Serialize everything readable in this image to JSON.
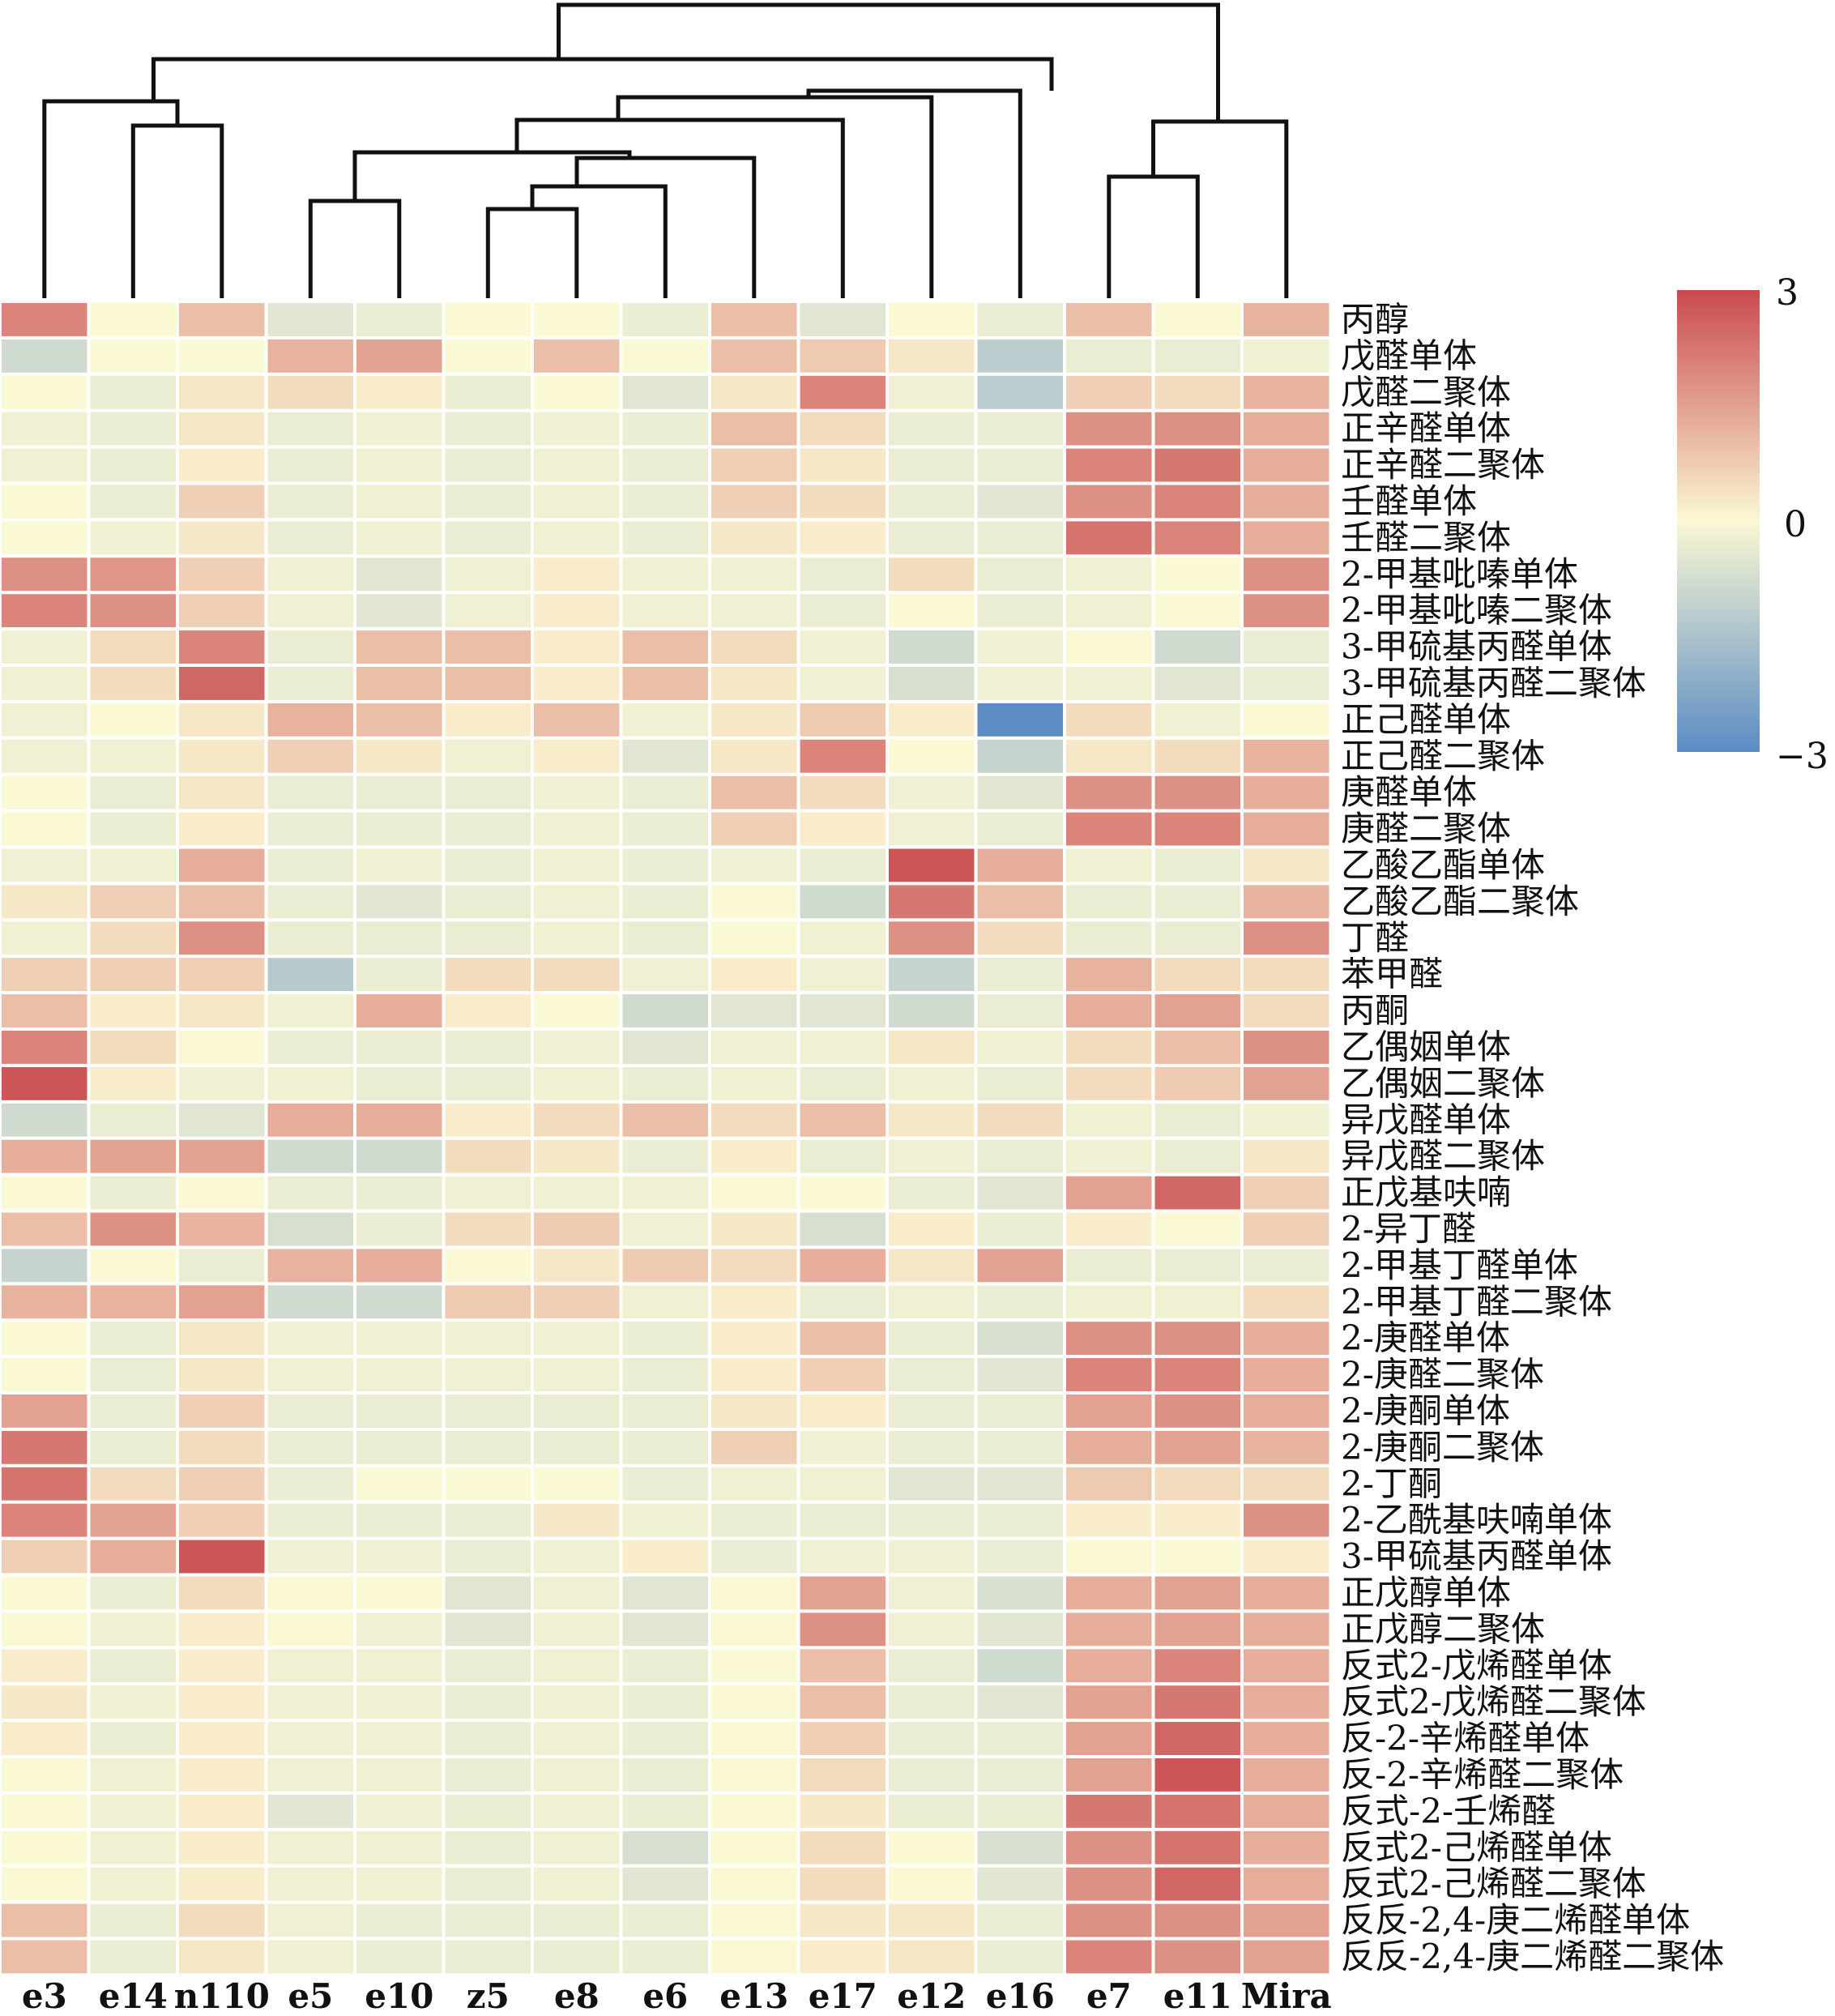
{
  "chart_data": {
    "type": "heatmap",
    "title": "",
    "columns": [
      "e3",
      "e14",
      "n110",
      "e5",
      "e10",
      "z5",
      "e8",
      "e6",
      "e13",
      "e17",
      "e12",
      "e16",
      "e7",
      "e11",
      "Mira"
    ],
    "rows": [
      "丙醇",
      "戊醛单体",
      "戊醛二聚体",
      "正辛醛单体",
      "正辛醛二聚体",
      "壬醛单体",
      "壬醛二聚体",
      "2-甲基吡嗪单体",
      "2-甲基吡嗪二聚体",
      "3-甲硫基丙醛单体",
      "3-甲硫基丙醛二聚体",
      "正己醛单体",
      "正己醛二聚体",
      "庚醛单体",
      "庚醛二聚体",
      "乙酸乙酯单体",
      "乙酸乙酯二聚体",
      "丁醛",
      "苯甲醛",
      "丙酮",
      "乙偶姻单体",
      "乙偶姻二聚体",
      "异戊醛单体",
      "异戊醛二聚体",
      "正戊基呋喃",
      "2-异丁醛",
      "2-甲基丁醛单体",
      "2-甲基丁醛二聚体",
      "2-庚醛单体",
      "2-庚醛二聚体",
      "2-庚酮单体",
      "2-庚酮二聚体",
      "2-丁酮",
      "2-乙酰基呋喃单体",
      "3-甲硫基丙醛单体",
      "正戊醇单体",
      "正戊醇二聚体",
      "反式2-戊烯醛单体",
      "反式2-戊烯醛二聚体",
      "反-2-辛烯醛单体",
      "反-2-辛烯醛二聚体",
      "反式-2-壬烯醛",
      "反式2-己烯醛单体",
      "反式2-己烯醛二聚体",
      "反反-2,4-庚二烯醛单体",
      "反反-2,4-庚二烯醛二聚体"
    ],
    "values": [
      [
        2,
        0,
        1,
        -0.5,
        -0.3,
        0,
        0,
        -0.3,
        1,
        -0.5,
        0,
        -0.3,
        1,
        0,
        1.2
      ],
      [
        -0.8,
        0,
        0,
        1.2,
        1.5,
        0,
        1,
        0,
        1,
        0.8,
        0.3,
        -1.2,
        -0.3,
        -0.3,
        -0.2
      ],
      [
        0,
        -0.3,
        0.3,
        0.5,
        0.2,
        -0.3,
        0,
        -0.5,
        0.3,
        2,
        -0.2,
        -1.2,
        0.7,
        0.5,
        1.2
      ],
      [
        -0.2,
        -0.3,
        0.3,
        -0.3,
        -0.2,
        -0.3,
        -0.2,
        -0.3,
        1,
        0.5,
        -0.3,
        -0.3,
        1.8,
        1.8,
        1.3
      ],
      [
        -0.2,
        -0.3,
        0.2,
        -0.3,
        -0.2,
        -0.3,
        -0.2,
        -0.3,
        0.7,
        0.3,
        -0.3,
        -0.3,
        2,
        2.2,
        1.3
      ],
      [
        0,
        -0.3,
        0.7,
        -0.3,
        -0.2,
        -0.3,
        -0.2,
        -0.3,
        0.7,
        0.5,
        -0.3,
        -0.5,
        1.8,
        2,
        1.3
      ],
      [
        0,
        -0.2,
        0.3,
        -0.3,
        -0.2,
        -0.3,
        -0.2,
        -0.3,
        0.3,
        0.2,
        -0.3,
        -0.3,
        2.3,
        2,
        1.3
      ],
      [
        1.8,
        1.7,
        0.7,
        -0.2,
        -0.5,
        -0.2,
        0.2,
        -0.2,
        -0.2,
        -0.3,
        0.5,
        -0.3,
        -0.2,
        0,
        1.8
      ],
      [
        2,
        1.8,
        0.7,
        -0.2,
        -0.5,
        -0.2,
        0.2,
        -0.2,
        -0.2,
        -0.3,
        0,
        -0.3,
        -0.2,
        0,
        1.8
      ],
      [
        -0.2,
        0.5,
        2,
        -0.3,
        1,
        1,
        0.2,
        1,
        0.5,
        -0.2,
        -0.8,
        -0.2,
        0,
        -0.8,
        -0.3
      ],
      [
        -0.2,
        0.5,
        2.5,
        -0.3,
        1,
        1,
        0.2,
        1,
        0.3,
        -0.2,
        -0.7,
        -0.2,
        -0.2,
        -0.5,
        -0.3
      ],
      [
        -0.2,
        0,
        0.3,
        1.2,
        1,
        0.2,
        1,
        -0.2,
        0.3,
        0.8,
        0.2,
        -3,
        0.5,
        -0.2,
        0
      ],
      [
        -0.2,
        -0.2,
        0.3,
        0.7,
        0.3,
        -0.2,
        0.2,
        -0.5,
        0.3,
        2,
        0,
        -1,
        0.3,
        0.5,
        1.2
      ],
      [
        0,
        -0.3,
        0.3,
        -0.3,
        -0.3,
        -0.3,
        -0.2,
        -0.3,
        1,
        0.5,
        -0.2,
        -0.5,
        1.8,
        1.8,
        1.3
      ],
      [
        0,
        -0.3,
        0.2,
        -0.3,
        -0.3,
        -0.3,
        -0.2,
        -0.3,
        0.7,
        0.2,
        -0.2,
        -0.3,
        2,
        2,
        1.3
      ],
      [
        -0.2,
        -0.2,
        1.3,
        -0.3,
        -0.2,
        -0.3,
        -0.2,
        -0.3,
        -0.2,
        -0.3,
        2.8,
        1.3,
        -0.2,
        -0.3,
        0.3
      ],
      [
        0.3,
        0.7,
        1,
        -0.3,
        -0.5,
        -0.3,
        -0.2,
        -0.3,
        0,
        -0.8,
        2.2,
        1,
        -0.3,
        -0.3,
        1.2
      ],
      [
        -0.2,
        0.5,
        1.8,
        -0.3,
        -0.3,
        -0.3,
        -0.2,
        -0.3,
        0,
        -0.2,
        1.8,
        0.5,
        -0.3,
        -0.3,
        1.8
      ],
      [
        0.7,
        0.7,
        0.7,
        -1.3,
        -0.3,
        0.5,
        0.5,
        -0.2,
        0.2,
        -0.2,
        -1,
        -0.3,
        1.2,
        0.5,
        0.5
      ],
      [
        1,
        0.2,
        0.3,
        -0.2,
        1.3,
        0.2,
        0,
        -0.8,
        -0.5,
        -0.5,
        -0.8,
        -0.3,
        1.3,
        1.5,
        0.5
      ],
      [
        2,
        0.5,
        0,
        -0.3,
        -0.3,
        -0.3,
        -0.2,
        -0.5,
        -0.2,
        -0.2,
        0.3,
        -0.2,
        0.5,
        1,
        1.8
      ],
      [
        2.8,
        0.2,
        -0.2,
        -0.2,
        -0.3,
        -0.3,
        -0.2,
        -0.3,
        -0.2,
        -0.3,
        -0.2,
        -0.3,
        0.5,
        0.8,
        1.5
      ],
      [
        -0.8,
        -0.3,
        -0.5,
        1.3,
        1.3,
        0.2,
        0.5,
        1,
        0.5,
        1,
        0.3,
        0.5,
        -0.2,
        -0.3,
        -0.2
      ],
      [
        1.3,
        1.5,
        1.5,
        -0.8,
        -0.8,
        0.5,
        0.3,
        -0.3,
        0.2,
        -0.3,
        -0.2,
        -0.3,
        -0.2,
        -0.3,
        0.3
      ],
      [
        0,
        -0.3,
        0,
        -0.3,
        -0.3,
        -0.2,
        -0.2,
        -0.2,
        0,
        0,
        -0.3,
        -0.5,
        1.5,
        2.5,
        0.7
      ],
      [
        1,
        1.8,
        1.2,
        -0.7,
        -0.3,
        0.5,
        0.8,
        -0.2,
        0.3,
        -0.7,
        0.2,
        -0.3,
        0.2,
        0,
        0.7
      ],
      [
        -1,
        0,
        -0.3,
        1.2,
        1.3,
        0,
        0.3,
        0.8,
        0.5,
        1.3,
        0.3,
        1.5,
        -0.3,
        -0.3,
        -0.3
      ],
      [
        1.2,
        1.2,
        1.5,
        -0.8,
        -0.8,
        0.8,
        0.7,
        -0.2,
        0.2,
        -0.3,
        -0.2,
        -0.3,
        -0.2,
        -0.2,
        0.5
      ],
      [
        0,
        -0.3,
        0.3,
        -0.2,
        -0.2,
        -0.2,
        -0.2,
        -0.3,
        0.2,
        1,
        -0.3,
        -0.7,
        1.8,
        1.8,
        1.3
      ],
      [
        0,
        -0.3,
        0.3,
        -0.2,
        -0.2,
        -0.2,
        -0.2,
        -0.3,
        0.2,
        0.7,
        -0.3,
        -0.5,
        2,
        2,
        1.3
      ],
      [
        1.5,
        -0.3,
        0.7,
        -0.3,
        -0.3,
        -0.3,
        -0.3,
        -0.3,
        0.3,
        0.2,
        -0.3,
        -0.3,
        1.5,
        1.8,
        1.3
      ],
      [
        2.2,
        -0.3,
        0.5,
        -0.3,
        -0.3,
        -0.3,
        -0.3,
        -0.3,
        0.7,
        -0.2,
        -0.3,
        -0.3,
        1.3,
        1.5,
        1.2
      ],
      [
        2.3,
        0.5,
        0.7,
        -0.3,
        0,
        0,
        0,
        -0.3,
        -0.2,
        -0.2,
        -0.5,
        -0.5,
        0.8,
        0.5,
        0.5
      ],
      [
        2,
        1.5,
        0.7,
        -0.3,
        -0.3,
        -0.3,
        0.3,
        -0.2,
        -0.3,
        -0.3,
        -0.3,
        -0.3,
        0.2,
        0.2,
        1.8
      ],
      [
        0.7,
        1.3,
        2.8,
        -0.2,
        -0.2,
        -0.3,
        -0.2,
        0.2,
        -0.3,
        -0.2,
        -0.2,
        -0.3,
        0,
        0,
        0.2
      ],
      [
        0,
        -0.3,
        0.5,
        0,
        0,
        -0.5,
        -0.2,
        -0.5,
        0,
        1.5,
        -0.2,
        -0.7,
        1.3,
        1.5,
        1.3
      ],
      [
        0,
        -0.2,
        0.2,
        0,
        -0.2,
        -0.5,
        -0.2,
        -0.5,
        0,
        1.8,
        -0.2,
        -0.5,
        1.3,
        1.5,
        1.3
      ],
      [
        0.2,
        -0.3,
        0.2,
        -0.2,
        -0.2,
        -0.3,
        -0.2,
        -0.3,
        0,
        1,
        -0.3,
        -0.8,
        1.3,
        2,
        1.3
      ],
      [
        0.3,
        -0.2,
        0.2,
        -0.2,
        -0.2,
        -0.3,
        -0.2,
        -0.3,
        0,
        1,
        -0.3,
        -0.5,
        1.5,
        2.2,
        1.3
      ],
      [
        0.2,
        -0.3,
        0.2,
        -0.2,
        -0.2,
        -0.3,
        -0.2,
        -0.3,
        0,
        0.7,
        -0.3,
        -0.3,
        1.5,
        2.5,
        1.3
      ],
      [
        0,
        -0.2,
        0.2,
        -0.2,
        -0.2,
        -0.3,
        -0.2,
        -0.3,
        0,
        0.5,
        -0.3,
        -0.3,
        1.5,
        2.8,
        1.3
      ],
      [
        0,
        -0.2,
        0.2,
        -0.5,
        -0.2,
        -0.3,
        -0.2,
        -0.3,
        0,
        0.3,
        -0.3,
        -0.3,
        2.2,
        2.3,
        1.3
      ],
      [
        0,
        -0.2,
        0.2,
        -0.2,
        -0.2,
        -0.3,
        -0.2,
        -0.7,
        0,
        0.5,
        0,
        -0.7,
        1.8,
        2.3,
        1.3
      ],
      [
        0,
        -0.2,
        0.2,
        -0.2,
        -0.2,
        -0.3,
        -0.2,
        -0.5,
        0,
        0.5,
        0,
        -0.5,
        1.8,
        2.5,
        1.3
      ],
      [
        1,
        -0.3,
        0.5,
        -0.2,
        -0.3,
        -0.3,
        -0.3,
        -0.3,
        0,
        0.3,
        0.3,
        -0.3,
        1.8,
        1.8,
        1.5
      ],
      [
        1,
        -0.3,
        0.3,
        -0.2,
        -0.3,
        -0.3,
        -0.3,
        -0.3,
        0,
        0.2,
        0.3,
        -0.3,
        2,
        1.8,
        1.5
      ]
    ],
    "color_scale": {
      "min": -3,
      "max": 3,
      "ticks": [
        "3",
        "0",
        "−3"
      ],
      "low_color": "#4575b4",
      "mid_color": "#ffffbf",
      "high_color": "#d73027"
    },
    "column_dendrogram": true,
    "legend_position": "right"
  }
}
